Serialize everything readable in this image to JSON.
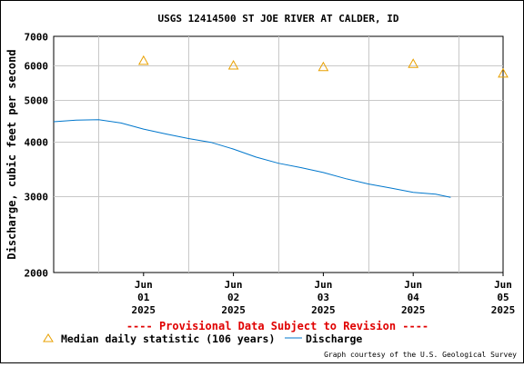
{
  "chart_data": {
    "type": "line",
    "title": "USGS 12414500 ST JOE RIVER AT CALDER, ID",
    "ylabel": "Discharge, cubic feet per second",
    "xlabel": "",
    "y_scale": "log",
    "ylim": [
      2000,
      7000
    ],
    "y_ticks": [
      2000,
      3000,
      4000,
      5000,
      6000,
      7000
    ],
    "y_tick_labels": [
      "2000",
      "3000",
      "4000",
      "5000",
      "6000",
      "7000"
    ],
    "xlim": [
      "2025-05-31T12:00",
      "2025-06-05T12:00"
    ],
    "x_ticks": [
      {
        "date": "2025-06-01",
        "label": [
          "Jun",
          "01",
          "2025"
        ]
      },
      {
        "date": "2025-06-02",
        "label": [
          "Jun",
          "02",
          "2025"
        ]
      },
      {
        "date": "2025-06-03",
        "label": [
          "Jun",
          "03",
          "2025"
        ]
      },
      {
        "date": "2025-06-04",
        "label": [
          "Jun",
          "04",
          "2025"
        ]
      },
      {
        "date": "2025-06-05",
        "label": [
          "Jun",
          "05",
          "2025"
        ]
      }
    ],
    "grid": true,
    "series": [
      {
        "name": "Discharge",
        "kind": "line",
        "color": "#0077cc",
        "points": [
          {
            "x": "2025-05-31T12:00",
            "y": 4450
          },
          {
            "x": "2025-05-31T18:00",
            "y": 4490
          },
          {
            "x": "2025-06-01T00:00",
            "y": 4500
          },
          {
            "x": "2025-06-01T06:00",
            "y": 4420
          },
          {
            "x": "2025-06-01T12:00",
            "y": 4280
          },
          {
            "x": "2025-06-01T18:00",
            "y": 4170
          },
          {
            "x": "2025-06-02T00:00",
            "y": 4070
          },
          {
            "x": "2025-06-02T06:00",
            "y": 3990
          },
          {
            "x": "2025-06-02T12:00",
            "y": 3850
          },
          {
            "x": "2025-06-02T18:00",
            "y": 3690
          },
          {
            "x": "2025-06-03T00:00",
            "y": 3570
          },
          {
            "x": "2025-06-03T06:00",
            "y": 3490
          },
          {
            "x": "2025-06-03T12:00",
            "y": 3400
          },
          {
            "x": "2025-06-03T18:00",
            "y": 3290
          },
          {
            "x": "2025-06-04T00:00",
            "y": 3200
          },
          {
            "x": "2025-06-04T06:00",
            "y": 3130
          },
          {
            "x": "2025-06-04T12:00",
            "y": 3060
          },
          {
            "x": "2025-06-04T18:00",
            "y": 3030
          },
          {
            "x": "2025-06-04T22:00",
            "y": 2980
          }
        ]
      },
      {
        "name": "Median daily statistic (106 years)",
        "kind": "marker",
        "marker": "triangle",
        "color": "#e8a000",
        "points": [
          {
            "x": "2025-06-01",
            "y": 6150
          },
          {
            "x": "2025-06-02",
            "y": 6000
          },
          {
            "x": "2025-06-03",
            "y": 5950
          },
          {
            "x": "2025-06-04",
            "y": 6050
          },
          {
            "x": "2025-06-05",
            "y": 5750
          }
        ]
      }
    ],
    "legend": {
      "placement": "bottom-left",
      "entries": [
        "Median daily statistic (106 years)",
        "Discharge"
      ]
    },
    "annotations": {
      "provisional": "---- Provisional Data Subject to Revision ----",
      "credit": "Graph courtesy of the U.S. Geological Survey"
    },
    "colors": {
      "provisional": "#e00000",
      "grid": "#c8c8c8",
      "discharge": "#0077cc",
      "median": "#e8a000"
    }
  }
}
